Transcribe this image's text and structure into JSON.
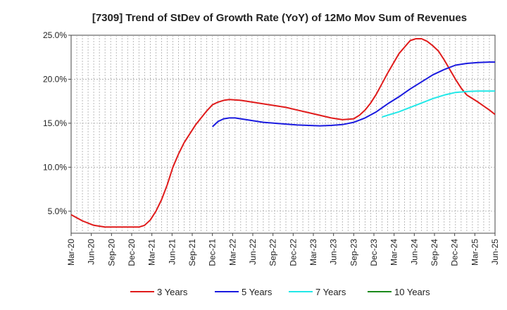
{
  "chart_data": {
    "type": "line",
    "title": "[7309]  Trend of StDev of Growth Rate (YoY) of 12Mo Mov Sum of Revenues",
    "xlabel": "",
    "ylabel": "",
    "ylim": [
      2.5,
      25.0
    ],
    "yticks": [
      5.0,
      10.0,
      15.0,
      20.0,
      25.0
    ],
    "ytick_labels": [
      "5.0%",
      "10.0%",
      "15.0%",
      "20.0%",
      "25.0%"
    ],
    "xlim": [
      0,
      75
    ],
    "xtick_labels": [
      "Mar-20",
      "Jun-20",
      "Sep-20",
      "Dec-20",
      "Mar-21",
      "Jun-21",
      "Sep-21",
      "Dec-21",
      "Mar-22",
      "Jun-22",
      "Sep-22",
      "Dec-22",
      "Mar-23",
      "Jun-23",
      "Sep-23",
      "Dec-23",
      "Mar-24",
      "Jun-24",
      "Sep-24",
      "Dec-24",
      "Mar-25",
      "Jun-25"
    ],
    "grid": true,
    "legend_position": "bottom",
    "series": [
      {
        "name": "3 Years",
        "color": "#e01b1b",
        "x": [
          0,
          2,
          4,
          6,
          8,
          10,
          12,
          13,
          14,
          15,
          16,
          17,
          18,
          19,
          20,
          22,
          24,
          25,
          26,
          27,
          28,
          30,
          32,
          34,
          36,
          38,
          40,
          42,
          44,
          46,
          48,
          50,
          51,
          52,
          53,
          54,
          55,
          56,
          58,
          60,
          61,
          62,
          63,
          64,
          65,
          66,
          67,
          68,
          69,
          70,
          72,
          74,
          75
        ],
        "values": [
          4.6,
          3.9,
          3.4,
          3.2,
          3.2,
          3.2,
          3.2,
          3.4,
          4.0,
          5.0,
          6.3,
          8.0,
          10.0,
          11.5,
          12.8,
          14.8,
          16.4,
          17.1,
          17.4,
          17.6,
          17.7,
          17.6,
          17.4,
          17.2,
          17.0,
          16.8,
          16.5,
          16.2,
          15.9,
          15.6,
          15.4,
          15.5,
          15.9,
          16.5,
          17.3,
          18.3,
          19.5,
          20.7,
          22.9,
          24.4,
          24.6,
          24.6,
          24.3,
          23.8,
          23.2,
          22.2,
          21.1,
          20.0,
          19.0,
          18.2,
          17.4,
          16.5,
          16.0
        ]
      },
      {
        "name": "5 Years",
        "color": "#1a1adf",
        "x": [
          25,
          26,
          27,
          28,
          29,
          30,
          32,
          34,
          36,
          38,
          40,
          42,
          44,
          46,
          48,
          50,
          52,
          54,
          56,
          58,
          60,
          62,
          64,
          66,
          68,
          70,
          72,
          74,
          75
        ],
        "values": [
          14.6,
          15.2,
          15.5,
          15.6,
          15.6,
          15.5,
          15.3,
          15.1,
          15.0,
          14.9,
          14.8,
          14.75,
          14.7,
          14.75,
          14.85,
          15.1,
          15.6,
          16.3,
          17.2,
          18.0,
          18.9,
          19.7,
          20.5,
          21.1,
          21.6,
          21.8,
          21.9,
          21.95,
          21.95
        ]
      },
      {
        "name": "7 Years",
        "color": "#22e8e8",
        "x": [
          55,
          56,
          58,
          60,
          62,
          64,
          66,
          68,
          70,
          72,
          74,
          75
        ],
        "values": [
          15.7,
          15.9,
          16.3,
          16.8,
          17.3,
          17.8,
          18.2,
          18.5,
          18.6,
          18.65,
          18.65,
          18.65
        ]
      },
      {
        "name": "10 Years",
        "color": "#1a8a1a",
        "x": [],
        "values": []
      }
    ]
  }
}
